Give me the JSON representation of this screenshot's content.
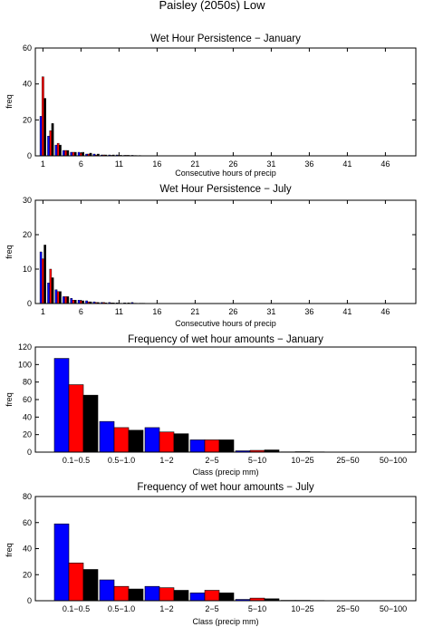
{
  "figure_title": "Paisley (2050s) Low",
  "colors": {
    "series_1": "#0000ff",
    "series_2": "#ff0000",
    "series_3": "#000000"
  },
  "chart_data": [
    {
      "type": "bar",
      "title": "Wet Hour Persistence − January",
      "xlabel": "Consecutive hours of precip",
      "ylabel": "freq",
      "xlim": [
        0,
        50
      ],
      "ylim": [
        0,
        60
      ],
      "xticks": [
        1,
        6,
        11,
        16,
        21,
        26,
        31,
        36,
        41,
        46
      ],
      "yticks": [
        0,
        20,
        40,
        60
      ],
      "x": [
        1,
        2,
        3,
        4,
        5,
        6,
        7,
        8,
        9,
        10,
        11,
        12,
        13,
        14
      ],
      "series": [
        {
          "values": [
            22,
            11,
            6,
            3,
            2,
            2,
            1,
            1,
            0.5,
            0.5,
            0.5,
            0.3,
            0.3,
            0.2
          ]
        },
        {
          "values": [
            44,
            14,
            7,
            3,
            2,
            1.5,
            1,
            0.5,
            0.5,
            0.3,
            0.3,
            0.3,
            0.2,
            0.1
          ]
        },
        {
          "values": [
            32,
            18,
            6,
            3,
            2,
            2,
            1.5,
            1,
            0.5,
            0.5,
            0.3,
            0.3,
            0.2,
            0.1
          ]
        }
      ]
    },
    {
      "type": "bar",
      "title": "Wet Hour Persistence − July",
      "xlabel": "Consecutive hours of precip",
      "ylabel": "freq",
      "xlim": [
        0,
        50
      ],
      "ylim": [
        0,
        30
      ],
      "xticks": [
        1,
        6,
        11,
        16,
        21,
        26,
        31,
        36,
        41,
        46
      ],
      "yticks": [
        0,
        10,
        20,
        30
      ],
      "x": [
        1,
        2,
        3,
        4,
        5,
        6,
        7,
        8,
        9,
        10,
        11,
        12,
        13,
        14
      ],
      "series": [
        {
          "values": [
            15,
            6,
            4,
            2,
            1.5,
            1,
            0.8,
            0.5,
            0.3,
            0.3,
            0.2,
            0.2,
            0.3,
            0.1
          ]
        },
        {
          "values": [
            13,
            10,
            3.5,
            2,
            1,
            0.8,
            0.5,
            0.3,
            0.3,
            0.2,
            0.1,
            0.1,
            0.1,
            0.1
          ]
        },
        {
          "values": [
            17,
            7.5,
            3.5,
            2,
            1,
            0.8,
            0.5,
            0.3,
            0.2,
            0.2,
            0.1,
            0.2,
            0.1,
            0.1
          ]
        }
      ]
    },
    {
      "type": "bar",
      "title": "Frequency of wet hour amounts − January",
      "xlabel": "Class (precip mm)",
      "ylabel": "freq",
      "ylim": [
        0,
        120
      ],
      "yticks": [
        0,
        20,
        40,
        60,
        80,
        100,
        120
      ],
      "categories": [
        "0.1−0.5",
        "0.5−1.0",
        "1−2",
        "2−5",
        "5−10",
        "10−25",
        "25−50",
        "50−100"
      ],
      "series": [
        {
          "values": [
            107,
            35,
            28,
            14,
            1.5,
            0.3,
            0,
            0
          ]
        },
        {
          "values": [
            77,
            28,
            23,
            14,
            2,
            0.5,
            0,
            0
          ]
        },
        {
          "values": [
            65,
            25,
            21,
            14,
            2.5,
            0.3,
            0,
            0
          ]
        }
      ]
    },
    {
      "type": "bar",
      "title": "Frequency of wet hour amounts − July",
      "xlabel": "Class (precip mm)",
      "ylabel": "freq",
      "ylim": [
        0,
        80
      ],
      "yticks": [
        0,
        20,
        40,
        60,
        80
      ],
      "categories": [
        "0.1−0.5",
        "0.5−1.0",
        "1−2",
        "2−5",
        "5−10",
        "10−25",
        "25−50",
        "50−100"
      ],
      "series": [
        {
          "values": [
            59,
            16,
            11,
            6,
            1,
            0.3,
            0,
            0
          ]
        },
        {
          "values": [
            29,
            11,
            10,
            8,
            2,
            0.3,
            0,
            0
          ]
        },
        {
          "values": [
            24,
            9,
            8,
            6,
            1.5,
            0.2,
            0,
            0
          ]
        }
      ]
    }
  ]
}
